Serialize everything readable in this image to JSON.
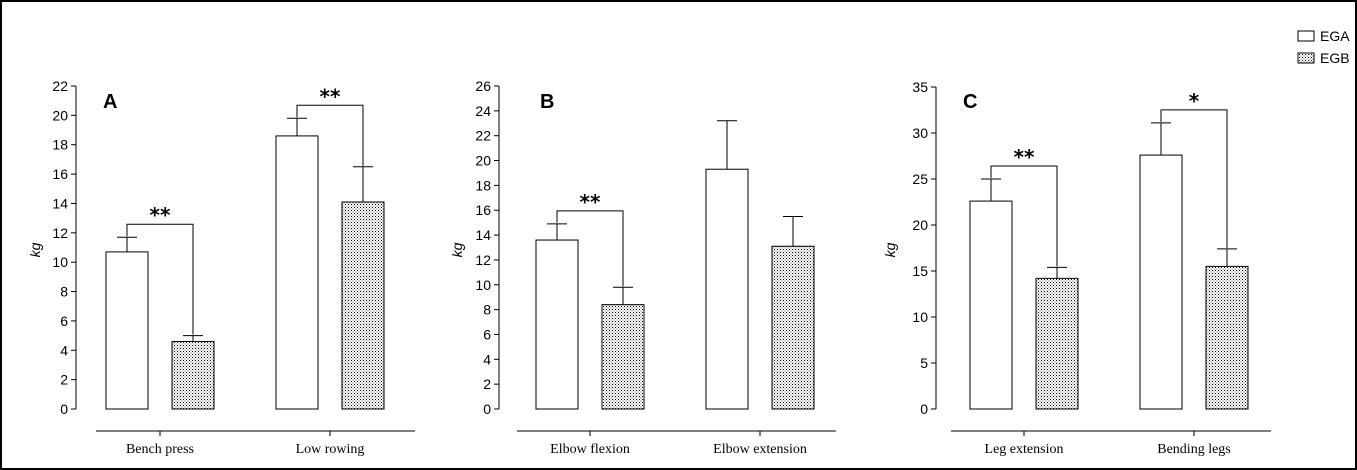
{
  "legend": [
    {
      "label": "EGA",
      "pattern": "white"
    },
    {
      "label": "EGB",
      "pattern": "dotted"
    }
  ],
  "chart_data": [
    {
      "type": "bar",
      "panel_label": "A",
      "ylabel": "kg",
      "ylim": [
        0,
        22
      ],
      "yticks": [
        0,
        2,
        4,
        6,
        8,
        10,
        12,
        14,
        16,
        18,
        20,
        22
      ],
      "categories": [
        "Bench press",
        "Low rowing"
      ],
      "series": [
        {
          "name": "EGA",
          "values": [
            10.7,
            18.6
          ],
          "errors": [
            1.0,
            1.2
          ]
        },
        {
          "name": "EGB",
          "values": [
            4.6,
            14.1
          ],
          "errors": [
            0.4,
            2.4
          ]
        }
      ],
      "significance": [
        {
          "category": "Bench press",
          "label": "**"
        },
        {
          "category": "Low rowing",
          "label": "**"
        }
      ]
    },
    {
      "type": "bar",
      "panel_label": "B",
      "ylabel": "kg",
      "ylim": [
        0,
        26
      ],
      "yticks": [
        0,
        2,
        4,
        6,
        8,
        10,
        12,
        14,
        16,
        18,
        20,
        22,
        24,
        26
      ],
      "categories": [
        "Elbow flexion",
        "Elbow extension"
      ],
      "series": [
        {
          "name": "EGA",
          "values": [
            13.6,
            19.3
          ],
          "errors": [
            1.3,
            3.9
          ]
        },
        {
          "name": "EGB",
          "values": [
            8.4,
            13.1
          ],
          "errors": [
            1.4,
            2.4
          ]
        }
      ],
      "significance": [
        {
          "category": "Elbow flexion",
          "label": "**"
        }
      ]
    },
    {
      "type": "bar",
      "panel_label": "C",
      "ylabel": "kg",
      "ylim": [
        0,
        35
      ],
      "yticks": [
        0,
        5,
        10,
        15,
        20,
        25,
        30,
        35
      ],
      "categories": [
        "Leg extension",
        "Bending legs"
      ],
      "series": [
        {
          "name": "EGA",
          "values": [
            22.6,
            27.6
          ],
          "errors": [
            2.4,
            3.5
          ]
        },
        {
          "name": "EGB",
          "values": [
            14.2,
            15.5
          ],
          "errors": [
            1.2,
            1.9
          ]
        }
      ],
      "significance": [
        {
          "category": "Leg extension",
          "label": "**"
        },
        {
          "category": "Bending legs",
          "label": "*"
        }
      ]
    }
  ]
}
